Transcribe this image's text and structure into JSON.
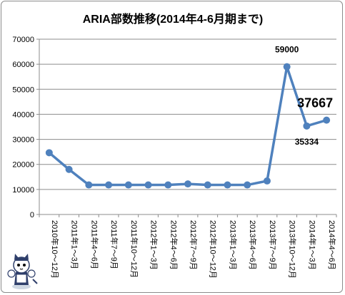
{
  "chart_data": {
    "type": "line",
    "title": "ARIA部数推移(2014年4-6月期まで)",
    "categories": [
      "2010年10〜12月",
      "2011年1〜3月",
      "2011年4〜6月",
      "2011年7〜9月",
      "2011年10〜12月",
      "2012年1〜3月",
      "2012年4〜6月",
      "2012年7〜9月",
      "2012年10〜12月",
      "2013年1〜3月",
      "2013年4〜6月",
      "2013年7〜9月",
      "2013年10〜12月",
      "2014年1〜3月",
      "2014年4〜6月"
    ],
    "values": [
      24667,
      18000,
      11800,
      11800,
      11800,
      11800,
      11800,
      12200,
      11800,
      11800,
      11800,
      13400,
      59000,
      35334,
      37667
    ],
    "data_labels": [
      {
        "index": 12,
        "text": "59000"
      },
      {
        "index": 13,
        "text": "35334"
      },
      {
        "index": 14,
        "text": "37667",
        "emphasis": true
      }
    ],
    "ylim": [
      0,
      70000
    ],
    "yticks": [
      "0",
      "10000",
      "20000",
      "30000",
      "40000",
      "50000",
      "60000",
      "70000"
    ],
    "xlabel": "",
    "ylabel": "",
    "grid": true,
    "line_color": "#4f81bd",
    "grid_color": "#8c8c8c"
  },
  "mascot": {
    "icon": "cat-mascot-icon"
  }
}
